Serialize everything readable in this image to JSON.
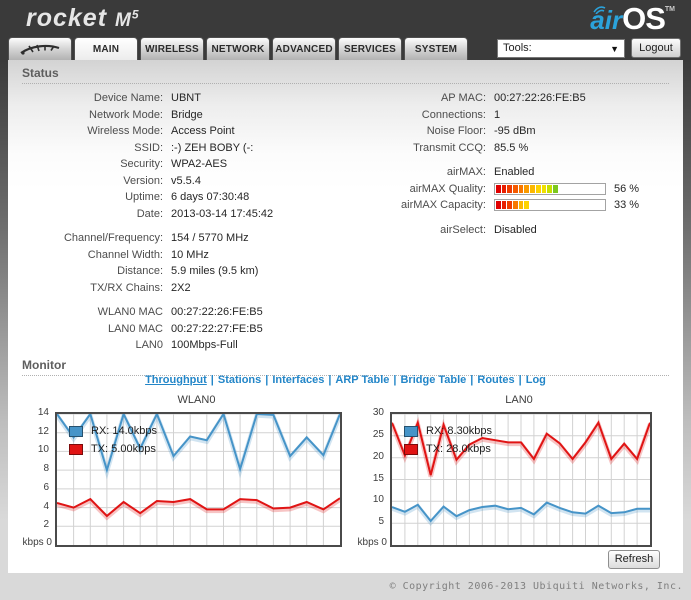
{
  "header": {
    "brand": "rocket",
    "model_letter": "M",
    "model_digit": "5",
    "airos_air": "air",
    "airos_os": "OS",
    "airos_tm": "TM"
  },
  "nav": {
    "tabs": [
      {
        "label": "MAIN",
        "active": true
      },
      {
        "label": "WIRELESS",
        "active": false
      },
      {
        "label": "NETWORK",
        "active": false
      },
      {
        "label": "ADVANCED",
        "active": false
      },
      {
        "label": "SERVICES",
        "active": false
      },
      {
        "label": "SYSTEM",
        "active": false
      }
    ],
    "tools_label": "Tools:",
    "logout_label": "Logout"
  },
  "status": {
    "title": "Status",
    "left_groups": [
      [
        {
          "label": "Device Name:",
          "value": "UBNT"
        },
        {
          "label": "Network Mode:",
          "value": "Bridge"
        },
        {
          "label": "Wireless Mode:",
          "value": "Access Point"
        },
        {
          "label": "SSID:",
          "value": ":-) ZEH BOBY (-:"
        },
        {
          "label": "Security:",
          "value": "WPA2-AES"
        },
        {
          "label": "Version:",
          "value": "v5.5.4"
        },
        {
          "label": "Uptime:",
          "value": "6 days 07:30:48"
        },
        {
          "label": "Date:",
          "value": "2013-03-14 17:45:42"
        }
      ],
      [
        {
          "label": "Channel/Frequency:",
          "value": "154 / 5770 MHz"
        },
        {
          "label": "Channel Width:",
          "value": "10 MHz"
        },
        {
          "label": "Distance:",
          "value": "5.9 miles (9.5 km)"
        },
        {
          "label": "TX/RX Chains:",
          "value": "2X2"
        }
      ],
      [
        {
          "label": "WLAN0 MAC",
          "value": "00:27:22:26:FE:B5"
        },
        {
          "label": "LAN0 MAC",
          "value": "00:27:22:27:FE:B5"
        },
        {
          "label": "LAN0",
          "value": "100Mbps-Full"
        }
      ]
    ],
    "right_groups": [
      [
        {
          "label": "AP MAC:",
          "value": "00:27:22:26:FE:B5"
        },
        {
          "label": "Connections:",
          "value": "1"
        },
        {
          "label": "Noise Floor:",
          "value": "-95 dBm"
        },
        {
          "label": "Transmit CCQ:",
          "value": "85.5 %"
        }
      ],
      [
        {
          "label": "airMAX:",
          "value": "Enabled"
        },
        {
          "label": "airMAX Quality:",
          "value": "56 %",
          "percent": 56,
          "segments": [
            "#e00000",
            "#e81e00",
            "#f03c00",
            "#f55a00",
            "#f87800",
            "#fa9b00",
            "#fcb800",
            "#fdd300",
            "#f0e000",
            "#c6e000",
            "#7cc81e"
          ]
        },
        {
          "label": "airMAX Capacity:",
          "value": "33 %",
          "percent": 33,
          "segments": [
            "#e00000",
            "#e81e00",
            "#f03c00",
            "#f87800",
            "#fcb800",
            "#fdd300"
          ]
        }
      ],
      [
        {
          "label": "airSelect:",
          "value": "Disabled"
        }
      ]
    ]
  },
  "monitor": {
    "title": "Monitor",
    "separator": "|",
    "links": [
      {
        "label": "Throughput",
        "active": true
      },
      {
        "label": "Stations",
        "active": false
      },
      {
        "label": "Interfaces",
        "active": false
      },
      {
        "label": "ARP Table",
        "active": false
      },
      {
        "label": "Bridge Table",
        "active": false
      },
      {
        "label": "Routes",
        "active": false
      },
      {
        "label": "Log",
        "active": false
      }
    ]
  },
  "chart_data": [
    {
      "type": "line",
      "title": "WLAN0",
      "ylabel": "kbps",
      "ylim": [
        0,
        14
      ],
      "yticks": [
        14,
        12,
        10,
        8,
        6,
        4,
        2
      ],
      "origin_label": "kbps 0",
      "grid": true,
      "legend_position": "top-left",
      "series": [
        {
          "name": "RX",
          "legend": "RX: 14.0kbps",
          "color": "#4694c8",
          "values": [
            14,
            11.5,
            14,
            8,
            14,
            10.3,
            14,
            9.5,
            11.6,
            11.2,
            14,
            8.1,
            14,
            13.9,
            9.5,
            11.5,
            9.6,
            14
          ]
        },
        {
          "name": "TX",
          "legend": "TX: 5.00kbps",
          "color": "#e01414",
          "values": [
            4.5,
            4.0,
            4.9,
            3.1,
            4.6,
            3.4,
            4.7,
            4.6,
            4.9,
            3.8,
            3.8,
            4.9,
            4.8,
            3.9,
            4.0,
            4.6,
            3.8,
            5.0
          ]
        }
      ]
    },
    {
      "type": "line",
      "title": "LAN0",
      "ylabel": "kbps",
      "ylim": [
        0,
        30
      ],
      "yticks": [
        30,
        25,
        20,
        15,
        10,
        5
      ],
      "origin_label": "kbps 0",
      "grid": true,
      "legend_position": "top-left",
      "series": [
        {
          "name": "RX",
          "legend": "RX: 8.30kbps",
          "color": "#4694c8",
          "values": [
            8.7,
            7.6,
            9.2,
            5.5,
            8.8,
            6.6,
            8.0,
            8.7,
            9.0,
            8.2,
            8.5,
            7.0,
            9.7,
            8.5,
            7.5,
            7.2,
            9.0,
            7.3,
            7.5,
            8.3,
            8.3
          ]
        },
        {
          "name": "TX",
          "legend": "TX: 28.0kbps",
          "color": "#e01414",
          "values": [
            28,
            20.5,
            28,
            16,
            27.5,
            19.5,
            23,
            24.5,
            24,
            23.5,
            23.5,
            19.7,
            25.5,
            23.3,
            19.7,
            23.5,
            28,
            19.7,
            23.2,
            19.7,
            28
          ]
        }
      ]
    }
  ],
  "footer": {
    "refresh_label": "Refresh",
    "copyright": "© Copyright 2006-2013 Ubiquiti Networks, Inc."
  }
}
